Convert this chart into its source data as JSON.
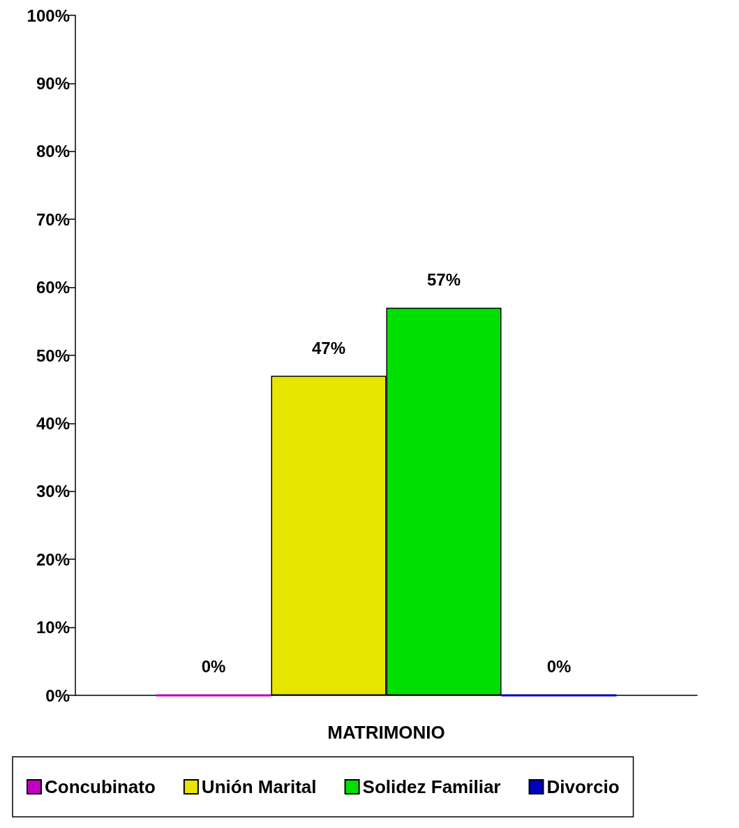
{
  "chart_data": {
    "type": "bar",
    "categories": [
      "MATRIMONIO"
    ],
    "series": [
      {
        "name": "Concubinato",
        "color": "#c000c0",
        "values": [
          0
        ],
        "value_labels": [
          "0%"
        ]
      },
      {
        "name": "Unión Marital",
        "color": "#e6e600",
        "values": [
          47
        ],
        "value_labels": [
          "47%"
        ]
      },
      {
        "name": "Solidez Familiar",
        "color": "#00e000",
        "values": [
          57
        ],
        "value_labels": [
          "57%"
        ]
      },
      {
        "name": "Divorcio",
        "color": "#0000c0",
        "values": [
          0
        ],
        "value_labels": [
          "0%"
        ]
      }
    ],
    "ylim": [
      0,
      100
    ],
    "yticks": [
      {
        "value": 0,
        "label": "0%"
      },
      {
        "value": 10,
        "label": "10%"
      },
      {
        "value": 20,
        "label": "20%"
      },
      {
        "value": 30,
        "label": "30%"
      },
      {
        "value": 40,
        "label": "40%"
      },
      {
        "value": 50,
        "label": "50%"
      },
      {
        "value": 60,
        "label": "60%"
      },
      {
        "value": 70,
        "label": "70%"
      },
      {
        "value": 80,
        "label": "80%"
      },
      {
        "value": 90,
        "label": "90%"
      },
      {
        "value": 100,
        "label": "100%"
      }
    ],
    "grid": false,
    "legend": "bottom"
  }
}
